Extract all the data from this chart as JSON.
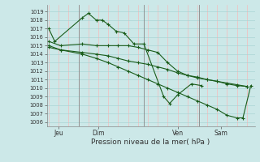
{
  "background_color": "#cce8e8",
  "grid_color_h": "#aad4d4",
  "grid_color_v": "#ffb0b0",
  "line_color": "#1a5c1a",
  "xlabel": "Pression niveau de la mer( hPa )",
  "ylim": [
    1005.5,
    1019.8
  ],
  "xlim": [
    -0.1,
    10.4
  ],
  "ytick_labels": [
    "1006",
    "1007",
    "1008",
    "1009",
    "1010",
    "1011",
    "1012",
    "1013",
    "1014",
    "1015",
    "1016",
    "1017",
    "1018",
    "1019"
  ],
  "ytick_vals": [
    1006,
    1007,
    1008,
    1009,
    1010,
    1011,
    1012,
    1013,
    1014,
    1015,
    1016,
    1017,
    1018,
    1019
  ],
  "xtick_positions": [
    0.5,
    2.5,
    6.5,
    8.7
  ],
  "xtick_labels": [
    "Jeu",
    "Dim",
    "Ven",
    "Sam"
  ],
  "vline_positions": [
    1.5,
    4.8,
    7.6
  ],
  "s1_x": [
    0.0,
    0.3,
    1.7,
    2.0,
    2.4,
    2.7,
    3.0,
    3.4,
    3.8,
    4.3,
    4.8,
    5.8,
    6.1,
    6.5,
    7.2,
    7.7
  ],
  "s1_y": [
    1017.0,
    1015.5,
    1018.3,
    1018.8,
    1018.0,
    1018.0,
    1017.5,
    1016.7,
    1016.5,
    1015.2,
    1015.2,
    1009.0,
    1008.2,
    1009.2,
    1010.5,
    1010.3
  ],
  "s2_x": [
    0.0,
    0.6,
    1.7,
    2.4,
    3.0,
    3.5,
    4.0,
    4.5,
    5.0,
    5.5,
    6.0,
    6.5,
    7.0,
    7.5,
    8.0,
    8.5,
    9.0,
    9.5,
    10.0
  ],
  "s2_y": [
    1015.5,
    1015.0,
    1015.2,
    1015.0,
    1015.0,
    1015.0,
    1015.0,
    1014.8,
    1014.5,
    1014.2,
    1013.0,
    1012.0,
    1011.5,
    1011.2,
    1011.0,
    1010.8,
    1010.5,
    1010.3,
    1010.2
  ],
  "s3_x": [
    0.0,
    0.6,
    1.7,
    2.4,
    3.0,
    3.5,
    4.0,
    4.5,
    5.0,
    5.5,
    6.0,
    6.5,
    7.0,
    7.5,
    8.0,
    8.5,
    9.0,
    9.5,
    10.0
  ],
  "s3_y": [
    1014.8,
    1014.5,
    1014.2,
    1014.0,
    1013.8,
    1013.5,
    1013.2,
    1013.0,
    1012.8,
    1012.5,
    1012.2,
    1011.8,
    1011.5,
    1011.3,
    1011.0,
    1010.8,
    1010.6,
    1010.4,
    1010.2
  ],
  "s4_x": [
    0.0,
    0.6,
    1.7,
    2.4,
    3.0,
    3.5,
    4.0,
    4.5,
    5.0,
    5.5,
    6.0,
    6.5,
    7.0,
    7.5,
    8.0,
    8.5,
    9.0,
    9.5,
    9.8,
    10.2
  ],
  "s4_y": [
    1015.0,
    1014.5,
    1014.0,
    1013.5,
    1013.0,
    1012.5,
    1012.0,
    1011.5,
    1011.0,
    1010.5,
    1010.0,
    1009.5,
    1009.0,
    1008.5,
    1008.0,
    1007.5,
    1006.8,
    1006.5,
    1006.5,
    1010.3
  ]
}
